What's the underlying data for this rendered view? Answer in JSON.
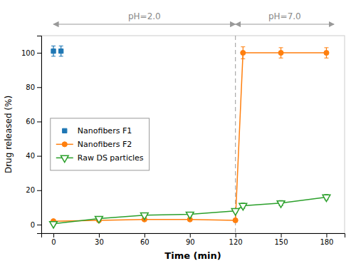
{
  "chart_data": {
    "type": "line",
    "x_label": "Time (min)",
    "y_label": "Drug released (%)",
    "xlim": [
      -8,
      192
    ],
    "ylim": [
      -5,
      110
    ],
    "xticks": [
      0,
      30,
      60,
      90,
      120,
      150,
      180
    ],
    "yticks": [
      0,
      20,
      40,
      60,
      80,
      100
    ],
    "legend": "left",
    "series": [
      {
        "name": "Nanofibers F1",
        "marker": "square",
        "line_style": "none",
        "x": [
          0,
          5
        ],
        "values": [
          101,
          101
        ],
        "errors": [
          3,
          3
        ]
      },
      {
        "name": "Nanofibers F2",
        "marker": "circle",
        "line_style": "solid",
        "x": [
          0,
          30,
          60,
          90,
          120,
          125,
          150,
          180
        ],
        "values": [
          2.0,
          2.5,
          3.0,
          3.0,
          2.5,
          100,
          100,
          100
        ],
        "errors": [
          0.5,
          0.5,
          0.5,
          0.5,
          0.5,
          3.5,
          3.0,
          3.0
        ]
      },
      {
        "name": "Raw DS particles",
        "marker": "triangle-down",
        "line_style": "solid",
        "x": [
          0,
          30,
          60,
          90,
          120,
          125,
          150,
          180
        ],
        "values": [
          0.5,
          3.5,
          5.5,
          6.0,
          8.0,
          11.0,
          12.5,
          16.0
        ],
        "errors": [
          0.5,
          1.0,
          1.0,
          1.0,
          1.0,
          1.5,
          1.5,
          1.5
        ]
      }
    ],
    "vlines": [
      {
        "x": 120,
        "color": "#aaaaaa",
        "line_style": "dashed"
      }
    ],
    "annotations": [
      {
        "text": "pH=2.0",
        "x_start": 0,
        "x_end": 120,
        "color": "#999999",
        "text_color": "#888888"
      },
      {
        "text": "pH=7.0",
        "x_start": 120,
        "x_end": 185,
        "color": "#999999",
        "text_color": "#888888"
      }
    ]
  }
}
